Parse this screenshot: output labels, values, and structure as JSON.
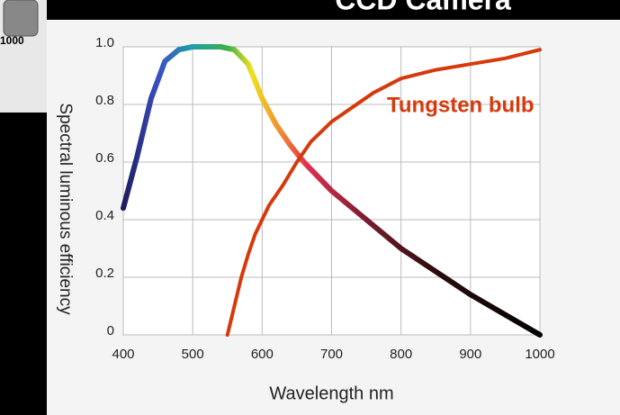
{
  "header_text": "CCD Camera",
  "fragment_label": "1000",
  "chart_data": {
    "type": "line",
    "y_label": "Spectral luminous efficiency",
    "x_label": "Wavelength nm",
    "xlim": [
      400,
      1000
    ],
    "ylim": [
      0,
      1
    ],
    "xticks": [
      400,
      500,
      600,
      700,
      800,
      900,
      1000
    ],
    "yticks": [
      0,
      0.2,
      0.4,
      0.6,
      0.8,
      {
        "value": 1,
        "label": "1.0"
      }
    ],
    "grid": true,
    "series": [
      {
        "x": [
          400,
          420,
          440,
          460,
          480,
          500,
          520,
          540,
          560,
          580,
          600,
          620,
          640,
          660,
          680,
          700,
          750,
          800,
          850,
          900,
          950,
          1000
        ],
        "values": [
          0.44,
          0.62,
          0.82,
          0.95,
          0.99,
          1.0,
          1.0,
          1.0,
          0.99,
          0.94,
          0.82,
          0.73,
          0.66,
          0.6,
          0.55,
          0.5,
          0.4,
          0.3,
          0.22,
          0.14,
          0.07,
          0.0
        ],
        "gradient": [
          {
            "at": 400,
            "color": "#1c1c5c"
          },
          {
            "at": 450,
            "color": "#3a4ec0"
          },
          {
            "at": 500,
            "color": "#1fa0a8"
          },
          {
            "at": 550,
            "color": "#3cb048"
          },
          {
            "at": 585,
            "color": "#f0e020"
          },
          {
            "at": 625,
            "color": "#f09030"
          },
          {
            "at": 665,
            "color": "#e03050"
          },
          {
            "at": 750,
            "color": "#7a1c30"
          },
          {
            "at": 850,
            "color": "#2a0c0c"
          },
          {
            "at": 1000,
            "color": "#000000"
          }
        ]
      },
      {
        "name": "Tungsten bulb",
        "color": "#d63a0c",
        "x": [
          550,
          560,
          570,
          580,
          590,
          600,
          610,
          630,
          650,
          670,
          700,
          730,
          760,
          800,
          850,
          900,
          950,
          1000
        ],
        "values": [
          0,
          0.1,
          0.2,
          0.28,
          0.35,
          0.4,
          0.45,
          0.52,
          0.6,
          0.67,
          0.74,
          0.79,
          0.84,
          0.89,
          0.92,
          0.94,
          0.96,
          0.99
        ]
      }
    ]
  }
}
